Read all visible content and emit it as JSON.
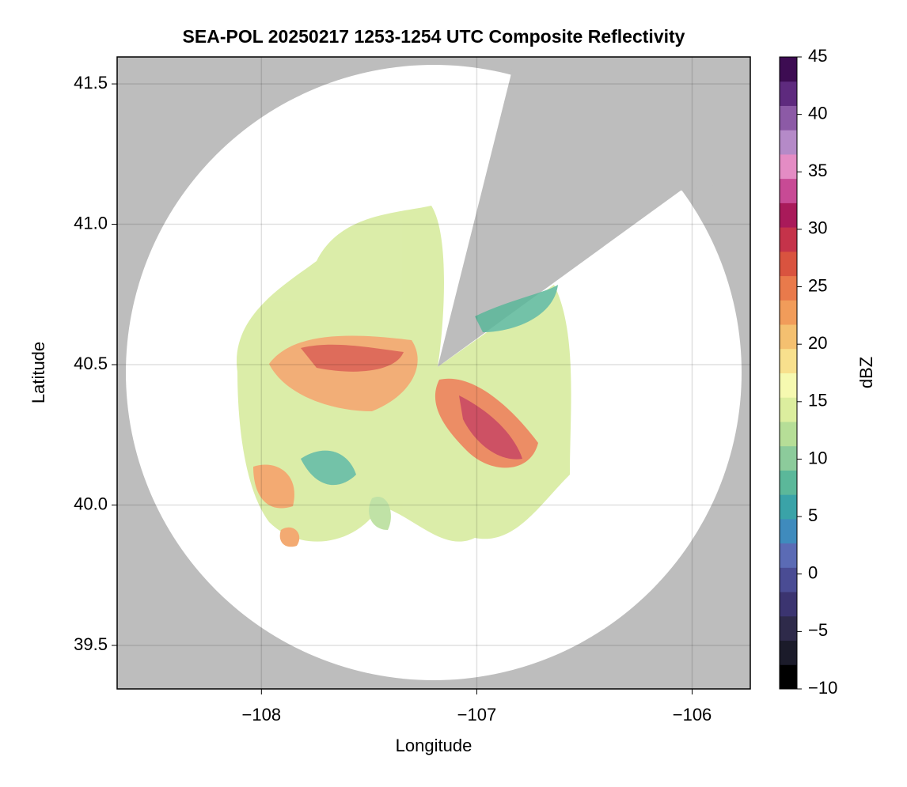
{
  "chart_data": {
    "type": "radar",
    "title": "SEA-POL 20250217 1253-1254 UTC Composite Reflectivity",
    "x_label": "Longitude",
    "y_label": "Latitude",
    "colorbar_label": "dBZ",
    "xlim": [
      -108.67,
      -105.73
    ],
    "xticks": [
      {
        "value": -108,
        "label": "−108"
      },
      {
        "value": -107,
        "label": "−107"
      },
      {
        "value": -106,
        "label": "−106"
      }
    ],
    "ylim": [
      39.345,
      41.596
    ],
    "yticks": [
      {
        "value": 39.5,
        "label": "39.5"
      },
      {
        "value": 40.0,
        "label": "40.0"
      },
      {
        "value": 40.5,
        "label": "40.5"
      },
      {
        "value": 41.0,
        "label": "41.0"
      },
      {
        "value": 41.5,
        "label": "41.5"
      }
    ],
    "clim": [
      -10,
      45
    ],
    "cticks": [
      {
        "value": -10,
        "label": "−10"
      },
      {
        "value": -5,
        "label": "−5"
      },
      0,
      5,
      10,
      15,
      20,
      25,
      30,
      35,
      40,
      45
    ],
    "colormap": [
      "#000000",
      "#1b1b2a",
      "#2e2a4a",
      "#3b3470",
      "#4a4c94",
      "#5b6bb5",
      "#3f8bbd",
      "#3aa3a8",
      "#5bb89a",
      "#8ccb9b",
      "#b6de97",
      "#dcee9e",
      "#f6f9b0",
      "#f8e08d",
      "#f4c070",
      "#f19c5a",
      "#e97a4b",
      "#d9533f",
      "#c5334a",
      "#a91a5a",
      "#c84a95",
      "#e48cc4",
      "#b58ac8",
      "#8c5aa6",
      "#5e2a7e",
      "#3d0c52"
    ],
    "grid": true
  }
}
